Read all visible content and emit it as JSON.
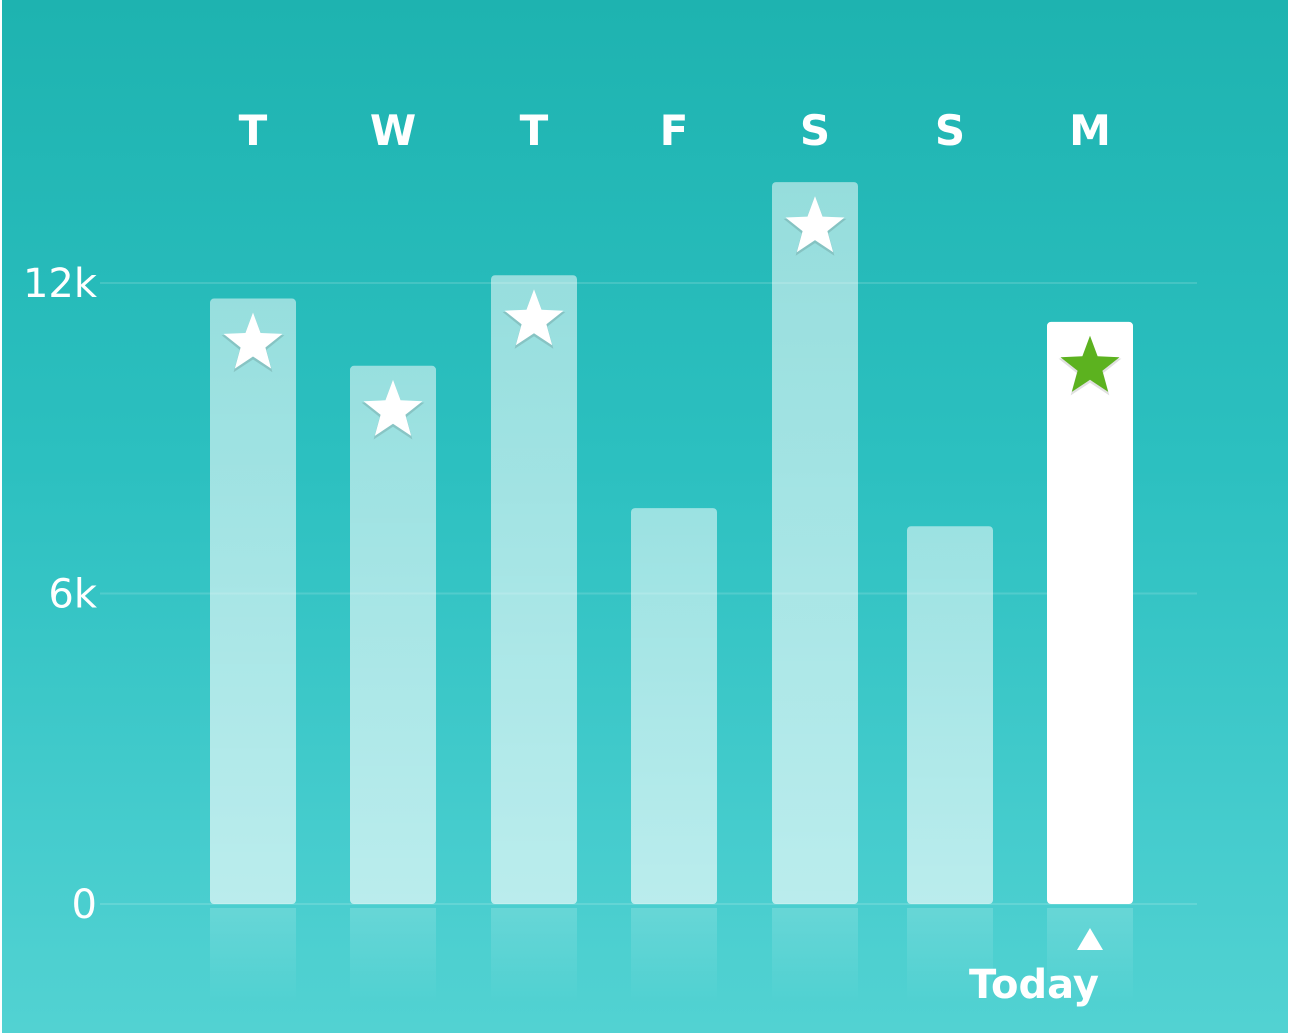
{
  "chart_data": {
    "type": "bar",
    "categories": [
      "T",
      "W",
      "T",
      "F",
      "S",
      "S",
      "M"
    ],
    "values": [
      11700,
      10400,
      12150,
      7650,
      13950,
      7300,
      11250
    ],
    "goal_met": [
      true,
      true,
      true,
      false,
      true,
      false,
      true
    ],
    "highlight_index": 6,
    "highlight_label": "Today",
    "yticks": [
      {
        "value": 0,
        "label": "0"
      },
      {
        "value": 6000,
        "label": "6k"
      },
      {
        "value": 12000,
        "label": "12k"
      }
    ],
    "ylim": [
      0,
      14500
    ],
    "grid": true
  },
  "colors": {
    "background_top": "#1eb3b0",
    "background_bottom": "#52d2d2",
    "bar": "#ffffff",
    "highlight_bar": "#ffffff",
    "star": "#ffffff",
    "highlight_star": "#5cb21f"
  },
  "icons": {
    "goal_marker": "star-icon",
    "today_marker": "triangle-up-icon"
  }
}
